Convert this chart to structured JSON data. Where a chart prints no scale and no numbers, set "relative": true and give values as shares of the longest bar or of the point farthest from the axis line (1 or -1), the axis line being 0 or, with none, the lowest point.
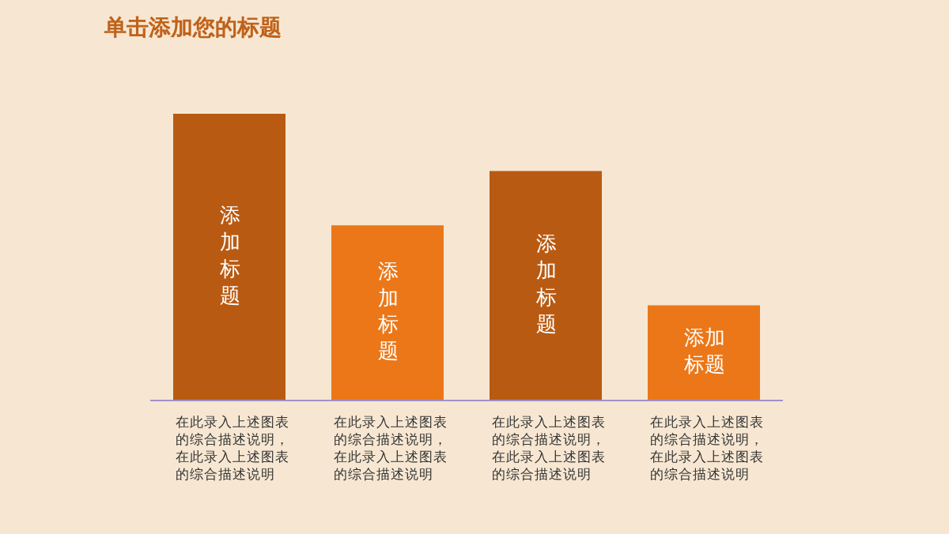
{
  "chart_data": {
    "type": "bar",
    "title": "单击添加您的标题",
    "relative": true,
    "categories": [
      "添加标题",
      "添加标题",
      "添加标题",
      "添加标题"
    ],
    "values": [
      1,
      0.61,
      0.8,
      0.33
    ],
    "colors": [
      "#b95a12",
      "#eb7718",
      "#b95a12",
      "#eb7718"
    ],
    "annotations": [
      "在此录入上述图表的综合描述说明，在此录入上述图表的综合描述说明",
      "在此录入上述图表的综合描述说明，在此录入上述图表的综合描述说明",
      "在此录入上述图表的综合描述说明，在此录入上述图表的综合描述说明",
      "在此录入上述图表的综合描述说明，在此录入上述图表的综合描述说明"
    ],
    "tick_labels": false,
    "grid": false,
    "legend": false
  }
}
